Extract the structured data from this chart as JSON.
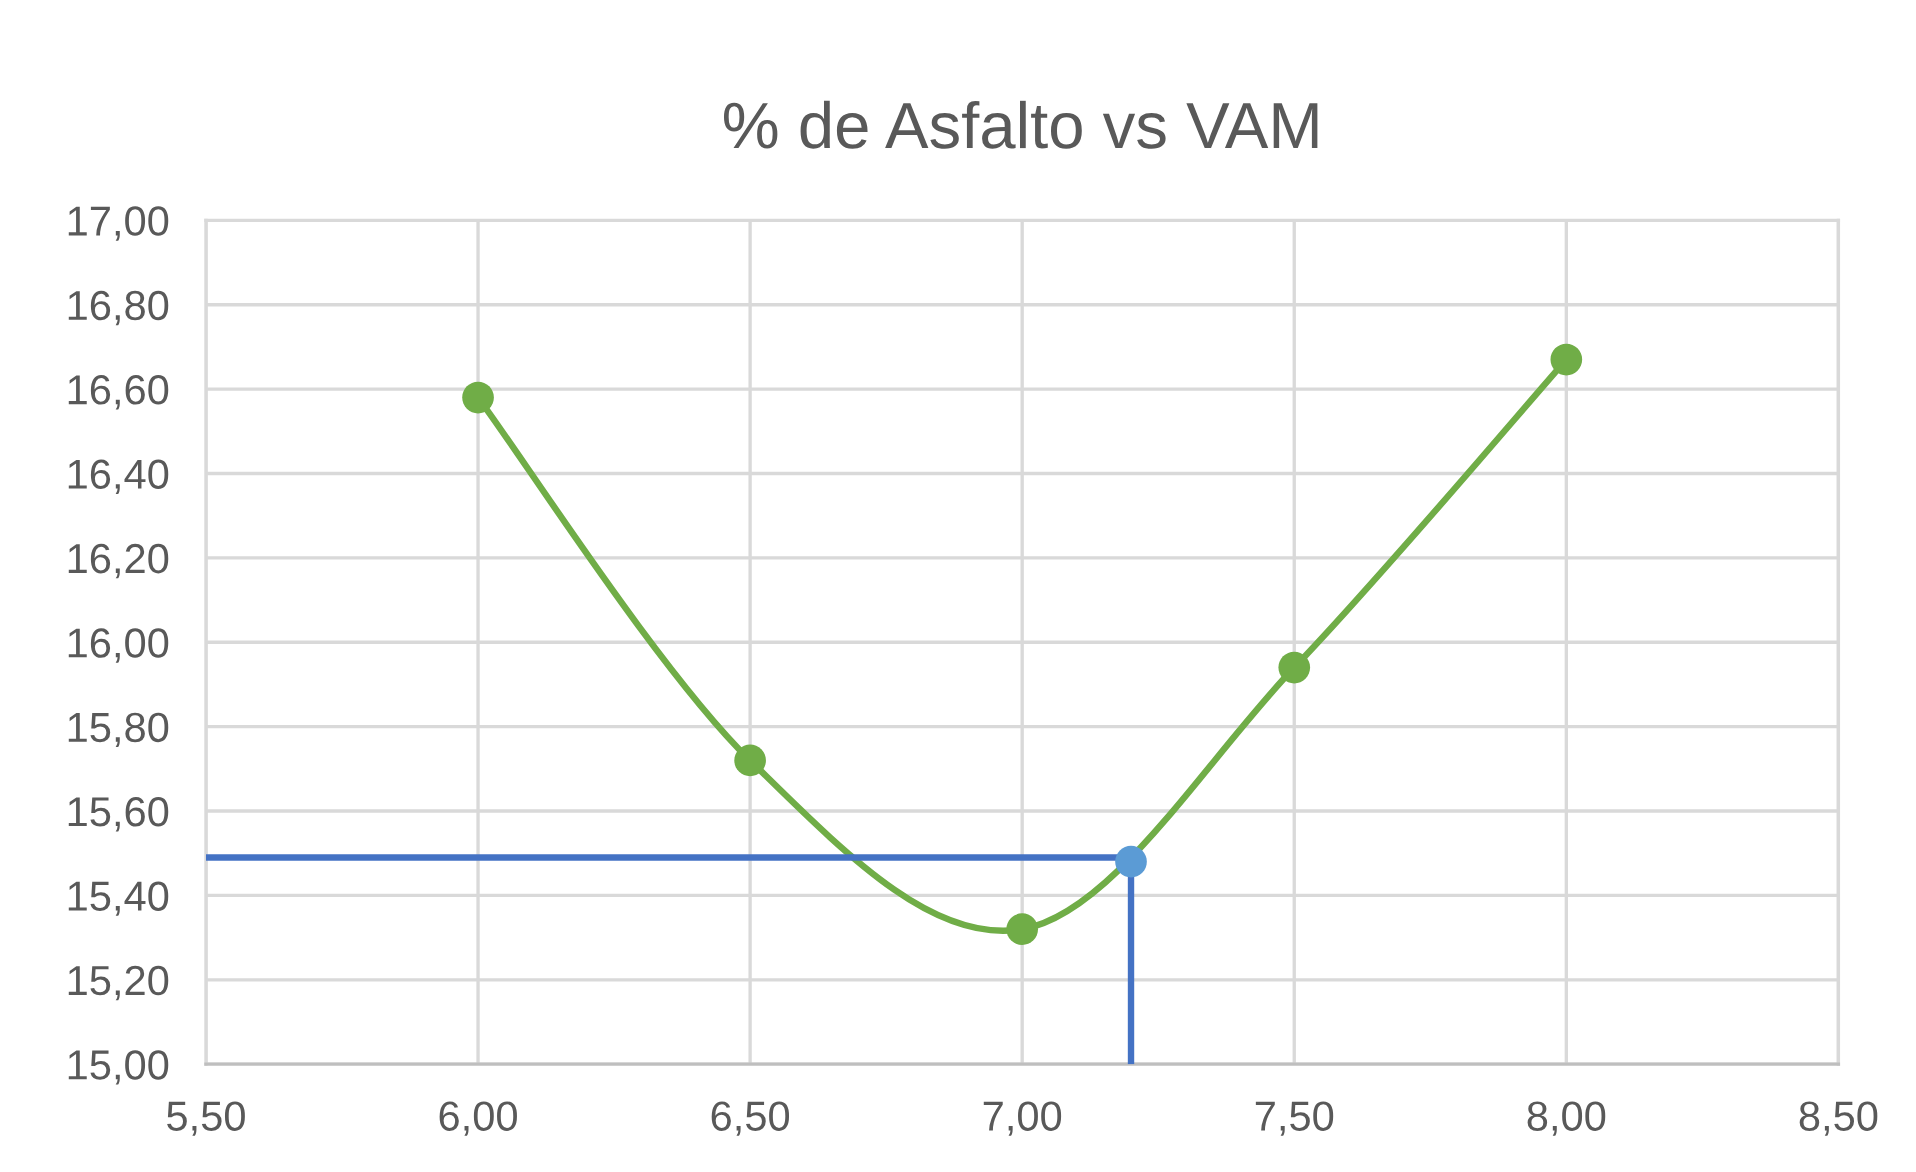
{
  "chart_data": {
    "type": "line",
    "title": "% de Asfalto vs VAM",
    "xlim": [
      5.5,
      8.5
    ],
    "xticks": [
      {
        "value": 5.5,
        "label": "5,50"
      },
      {
        "value": 6.0,
        "label": "6,00"
      },
      {
        "value": 6.5,
        "label": "6,50"
      },
      {
        "value": 7.0,
        "label": "7,00"
      },
      {
        "value": 7.5,
        "label": "7,50"
      },
      {
        "value": 8.0,
        "label": "8,00"
      },
      {
        "value": 8.5,
        "label": "8,50"
      }
    ],
    "ylim": [
      15.0,
      17.0
    ],
    "yticks": [
      {
        "value": 15.0,
        "label": "15,00"
      },
      {
        "value": 15.2,
        "label": "15,20"
      },
      {
        "value": 15.4,
        "label": "15,40"
      },
      {
        "value": 15.6,
        "label": "15,60"
      },
      {
        "value": 15.8,
        "label": "15,80"
      },
      {
        "value": 16.0,
        "label": "16,00"
      },
      {
        "value": 16.2,
        "label": "16,20"
      },
      {
        "value": 16.4,
        "label": "16,40"
      },
      {
        "value": 16.6,
        "label": "16,60"
      },
      {
        "value": 16.8,
        "label": "16,80"
      },
      {
        "value": 17.0,
        "label": "17,00"
      }
    ],
    "grid": true,
    "series": [
      {
        "color": "#70ad47",
        "marker": "circle",
        "x": [
          6.0,
          6.5,
          7.0,
          7.5,
          8.0
        ],
        "values": [
          16.58,
          15.72,
          15.32,
          15.94,
          16.67
        ]
      },
      {
        "color": "#4472c4",
        "marker": "none",
        "x": [
          5.5,
          7.2
        ],
        "values": [
          15.49,
          15.49
        ]
      },
      {
        "color": "#4472c4",
        "marker": "none",
        "x": [
          7.2,
          7.2
        ],
        "values": [
          15.49,
          15.0
        ]
      },
      {
        "type": "scatter",
        "color": "#5b9bd5",
        "marker": "circle",
        "x": [
          7.2
        ],
        "values": [
          15.48
        ]
      }
    ]
  }
}
